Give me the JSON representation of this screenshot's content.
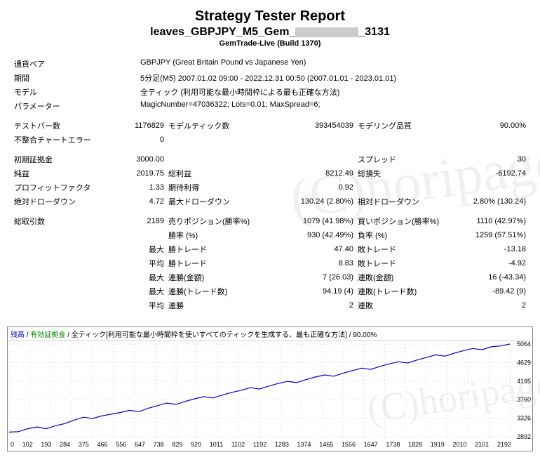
{
  "header": {
    "title": "Strategy Tester Report",
    "subtitle_prefix": "leaves_GBPJPY_M5_Gem_",
    "subtitle_suffix": "_3131",
    "build": "GemTrade-Live (Build 1370)"
  },
  "info": {
    "pair_label": "通貨ペア",
    "pair_value": "GBPJPY (Great Britain Pound vs Japanese Yen)",
    "period_label": "期間",
    "period_value": "5分足(M5) 2007.01.02 09:00 - 2022.12.31 00:50 (2007.01.01 - 2023.01.01)",
    "model_label": "モデル",
    "model_value": "全ティック (利用可能な最小時間枠による最も正確な方法)",
    "param_label": "パラメーター",
    "param_value": "MagicNumber=47036322; Lots=0.01; MaxSpread=6;"
  },
  "stats": [
    [
      "テストバー数",
      "1176829",
      "モデルティック数",
      "393454039",
      "モデリング品質",
      "90.00%"
    ],
    [
      "不整合チャートエラー",
      "0",
      "",
      "",
      "",
      ""
    ],
    [
      "",
      "",
      "",
      "",
      "",
      ""
    ],
    [
      "初期証拠金",
      "3000.00",
      "",
      "",
      "スプレッド",
      "30"
    ],
    [
      "純益",
      "2019.75",
      "総利益",
      "8212.49",
      "総損失",
      "-6192.74"
    ],
    [
      "プロフィットファクタ",
      "1.33",
      "期待利得",
      "0.92",
      "",
      ""
    ],
    [
      "絶対ドローダウン",
      "4.72",
      "最大ドローダウン",
      "130.24 (2.80%)",
      "相対ドローダウン",
      "2.80% (130.24)"
    ],
    [
      "",
      "",
      "",
      "",
      "",
      ""
    ],
    [
      "総取引数",
      "2189",
      "売りポジション(勝率%)",
      "1079 (41.98%)",
      "買いポジション(勝率%)",
      "1110 (42.97%)"
    ],
    [
      "",
      "",
      "勝率 (%)",
      "930 (42.49%)",
      "負率 (%)",
      "1259 (57.51%)"
    ],
    [
      "",
      "最大",
      "勝トレード",
      "47.40",
      "敗トレード",
      "-13.18"
    ],
    [
      "",
      "平均",
      "勝トレード",
      "8.83",
      "敗トレード",
      "-4.92"
    ],
    [
      "",
      "最大",
      "連勝(金額)",
      "7 (26.03)",
      "連敗(金額)",
      "16 (-43.34)"
    ],
    [
      "",
      "最大",
      "連勝(トレード数)",
      "94.19 (4)",
      "連敗(トレード数)",
      "-89.42 (9)"
    ],
    [
      "",
      "平均",
      "連勝",
      "2",
      "連敗",
      "2"
    ]
  ],
  "chart": {
    "legend_balance": "残高",
    "legend_equity": "有効証拠金",
    "legend_desc": "全ティック[利用可能な最小時間枠を使いすべてのティックを生成する、最も正確な方法]",
    "legend_quality": "90.00%",
    "x_ticks": [
      "0",
      "102",
      "193",
      "284",
      "375",
      "466",
      "556",
      "647",
      "738",
      "829",
      "920",
      "1011",
      "1102",
      "1192",
      "1283",
      "1374",
      "1465",
      "1556",
      "1647",
      "1738",
      "1828",
      "1919",
      "2010",
      "2101",
      "2192"
    ],
    "y_ticks": [
      "5064",
      "4629",
      "4195",
      "3760",
      "3326",
      "2892"
    ],
    "y_min": 2892,
    "y_max": 5064,
    "line_color": "#0000cc",
    "grid_color": "#c8c8c8",
    "background": "#ffffff",
    "series": [
      3000,
      3010,
      3080,
      3120,
      3080,
      3150,
      3200,
      3280,
      3350,
      3320,
      3380,
      3420,
      3460,
      3510,
      3480,
      3560,
      3620,
      3680,
      3650,
      3720,
      3780,
      3830,
      3800,
      3870,
      3930,
      3980,
      4040,
      4010,
      4080,
      4140,
      4190,
      4160,
      4230,
      4290,
      4340,
      4310,
      4380,
      4440,
      4500,
      4470,
      4540,
      4600,
      4650,
      4620,
      4690,
      4750,
      4810,
      4780,
      4850,
      4910,
      4960,
      4930,
      5000,
      5020,
      5064
    ]
  },
  "watermark": "(C)horipage"
}
